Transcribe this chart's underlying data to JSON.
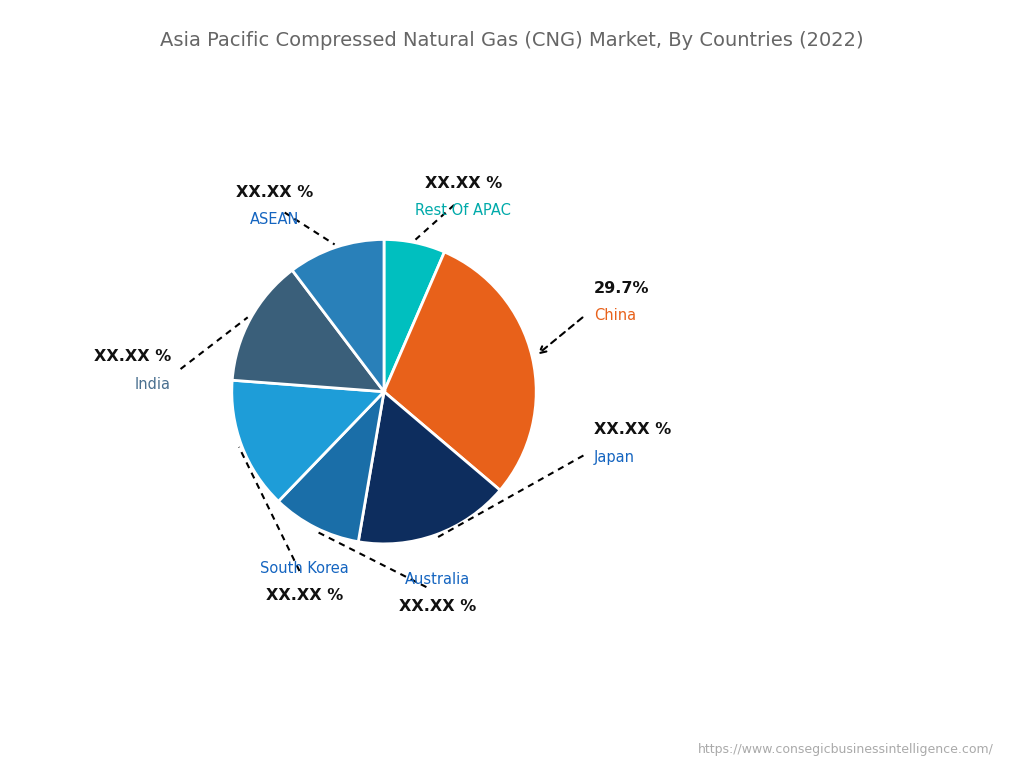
{
  "title": "Asia Pacific Compressed Natural Gas (CNG) Market, By Countries (2022)",
  "title_fontsize": 14,
  "title_color": "#666666",
  "watermark": "https://www.consegicbusinessintelligence.com/",
  "slices": [
    {
      "label": "Rest Of APAC",
      "pct_display": "XX.XX %",
      "value": 6.5,
      "color": "#00BFBF",
      "label_color": "#00AAAA",
      "pct_color": "#111111"
    },
    {
      "label": "China",
      "pct_display": "29.7%",
      "value": 29.7,
      "color": "#E8611A",
      "label_color": "#E8611A",
      "pct_color": "#111111"
    },
    {
      "label": "Japan",
      "pct_display": "XX.XX %",
      "value": 16.5,
      "color": "#0D2D5E",
      "label_color": "#1565C0",
      "pct_color": "#111111"
    },
    {
      "label": "Australia",
      "pct_display": "XX.XX %",
      "value": 9.5,
      "color": "#1A6EA8",
      "label_color": "#1565C0",
      "pct_color": "#111111"
    },
    {
      "label": "South Korea",
      "pct_display": "XX.XX %",
      "value": 14.0,
      "color": "#1E9DD8",
      "label_color": "#1565C0",
      "pct_color": "#111111"
    },
    {
      "label": "India",
      "pct_display": "XX.XX %",
      "value": 13.5,
      "color": "#3A5F7A",
      "label_color": "#4A7090",
      "pct_color": "#111111"
    },
    {
      "label": "ASEAN",
      "pct_display": "XX.XX %",
      "value": 10.3,
      "color": "#2980B9",
      "label_color": "#1565C0",
      "pct_color": "#111111"
    }
  ],
  "startangle": 90,
  "background_color": "#FFFFFF"
}
